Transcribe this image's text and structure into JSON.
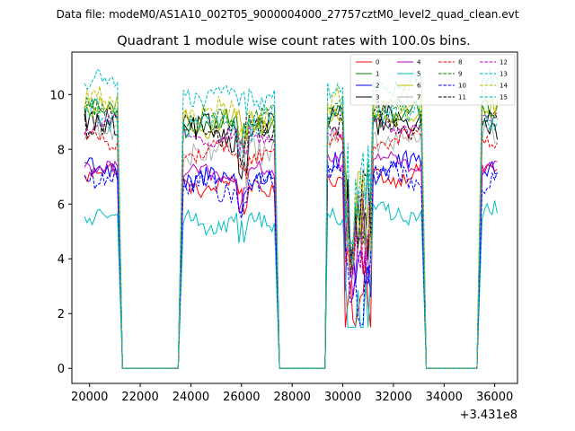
{
  "suptitle": "Data file: modeM0/AS1A10_002T05_9000004000_27757cztM0_level2_quad_clean.evt",
  "chart_data": {
    "type": "line",
    "title": "Quadrant 1 module wise count rates with 100.0s bins.",
    "xlabel": "",
    "ylabel": "",
    "x_offset_label": "+3.431e8",
    "xlim": [
      19300,
      36900
    ],
    "ylim": [
      -0.55,
      11.55
    ],
    "xticks": [
      20000,
      22000,
      24000,
      26000,
      28000,
      30000,
      32000,
      34000,
      36000
    ],
    "yticks": [
      0,
      2,
      4,
      6,
      8,
      10
    ],
    "grid": false,
    "legend_location": "top-right",
    "legend_columns": 4,
    "series": [
      {
        "name": "0",
        "color": "#ff0000",
        "dash": "solid",
        "base": 7.1,
        "gap": 5.2
      },
      {
        "name": "1",
        "color": "#008000",
        "dash": "solid",
        "base": 9.3,
        "gap": 8.8
      },
      {
        "name": "2",
        "color": "#0000ff",
        "dash": "solid",
        "base": 7.3,
        "gap": 6.6
      },
      {
        "name": "3",
        "color": "#000000",
        "dash": "solid",
        "base": 9.0,
        "gap": 8.6
      },
      {
        "name": "4",
        "color": "#bf00bf",
        "dash": "solid",
        "base": 7.5,
        "gap": 6.8
      },
      {
        "name": "5",
        "color": "#00bfbf",
        "dash": "solid",
        "base": 5.7,
        "gap": 4.8
      },
      {
        "name": "6",
        "color": "#bfbf00",
        "dash": "solid",
        "base": 9.4,
        "gap": 8.9
      },
      {
        "name": "7",
        "color": "#b0b0b0",
        "dash": "solid",
        "base": 8.5,
        "gap": 8.0
      },
      {
        "name": "8",
        "color": "#ff0000",
        "dash": "dashed",
        "base": 8.3,
        "gap": 7.6
      },
      {
        "name": "9",
        "color": "#008000",
        "dash": "dashed",
        "base": 9.5,
        "gap": 8.9
      },
      {
        "name": "10",
        "color": "#0000ff",
        "dash": "dashed",
        "base": 7.0,
        "gap": 6.2
      },
      {
        "name": "11",
        "color": "#000000",
        "dash": "dashed",
        "base": 9.1,
        "gap": 8.5
      },
      {
        "name": "12",
        "color": "#bf00bf",
        "dash": "dashed",
        "base": 8.9,
        "gap": 8.0
      },
      {
        "name": "13",
        "color": "#00bfbf",
        "dash": "dashed",
        "base": 10.4,
        "gap": 9.6
      },
      {
        "name": "14",
        "color": "#bfbf00",
        "dash": "dashed",
        "base": 9.7,
        "gap": 9.0
      },
      {
        "name": "15",
        "color": "#00bfbf",
        "dash": "dashed",
        "base": 9.3,
        "gap": 8.6
      }
    ],
    "active_segments": [
      {
        "start": 19800,
        "end": 21100
      },
      {
        "start": 23700,
        "end": 27300
      },
      {
        "start": 29400,
        "end": 33100
      },
      {
        "start": 35500,
        "end": 36100
      }
    ],
    "zero_segments": [
      {
        "start": 21300,
        "end": 23500
      },
      {
        "start": 27500,
        "end": 29300
      },
      {
        "start": 33300,
        "end": 35300
      }
    ]
  }
}
